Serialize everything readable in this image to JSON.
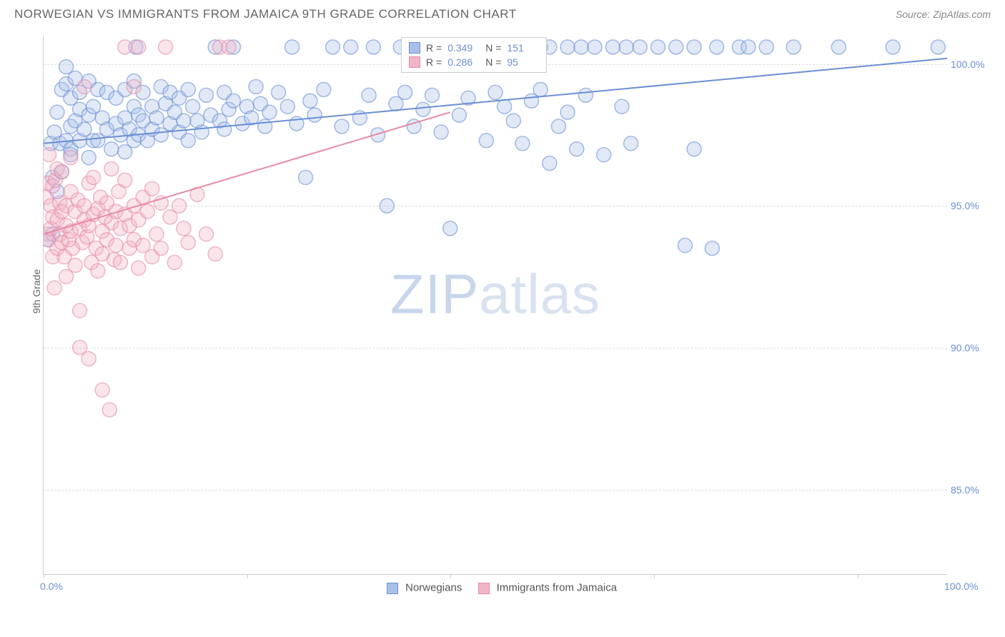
{
  "title": "NORWEGIAN VS IMMIGRANTS FROM JAMAICA 9TH GRADE CORRELATION CHART",
  "source": "Source: ZipAtlas.com",
  "ylabel": "9th Grade",
  "watermark_a": "ZIP",
  "watermark_b": "atlas",
  "chart": {
    "type": "scatter",
    "xlim": [
      0,
      100
    ],
    "ylim": [
      82,
      101
    ],
    "yticks": [
      85.0,
      90.0,
      95.0,
      100.0
    ],
    "ytick_labels": [
      "85.0%",
      "90.0%",
      "95.0%",
      "100.0%"
    ],
    "xticks": [
      0,
      100
    ],
    "xtick_labels": [
      "0.0%",
      "100.0%"
    ],
    "xtick_marks": [
      0,
      22.5,
      45,
      67.5,
      90
    ],
    "grid_color": "#dddddd",
    "background": "#ffffff",
    "marker_radius": 10,
    "marker_opacity": 0.35,
    "line_width": 2,
    "series": [
      {
        "name": "Norwegians",
        "color": "#6b8fd4",
        "fill": "#a8c0e8",
        "R": "0.349",
        "N": "151",
        "trend": {
          "x1": 0,
          "y1": 97.2,
          "x2": 100,
          "y2": 100.2
        },
        "points": [
          [
            0.5,
            93.8
          ],
          [
            0.8,
            97.2
          ],
          [
            1,
            94.0
          ],
          [
            1,
            96.0
          ],
          [
            1.2,
            97.6
          ],
          [
            1.5,
            95.5
          ],
          [
            1.5,
            98.3
          ],
          [
            1.8,
            97.2
          ],
          [
            2,
            96.2
          ],
          [
            2,
            99.1
          ],
          [
            2.5,
            99.3
          ],
          [
            2.5,
            97.3
          ],
          [
            2.5,
            99.9
          ],
          [
            3,
            97.0
          ],
          [
            3,
            98.8
          ],
          [
            3,
            96.8
          ],
          [
            3,
            97.8
          ],
          [
            3.5,
            99.5
          ],
          [
            3.5,
            98.0
          ],
          [
            4,
            98.4
          ],
          [
            4,
            97.3
          ],
          [
            4,
            99.0
          ],
          [
            4.5,
            97.7
          ],
          [
            5,
            99.4
          ],
          [
            5,
            98.2
          ],
          [
            5,
            96.7
          ],
          [
            5.5,
            97.3
          ],
          [
            5.5,
            98.5
          ],
          [
            6,
            97.3
          ],
          [
            6,
            99.1
          ],
          [
            6.5,
            98.1
          ],
          [
            7,
            99.0
          ],
          [
            7,
            97.7
          ],
          [
            7.5,
            97.0
          ],
          [
            8,
            97.9
          ],
          [
            8,
            98.8
          ],
          [
            8.5,
            97.5
          ],
          [
            9,
            98.1
          ],
          [
            9,
            99.1
          ],
          [
            9,
            96.9
          ],
          [
            9.5,
            97.7
          ],
          [
            10,
            98.5
          ],
          [
            10,
            97.3
          ],
          [
            10,
            99.4
          ],
          [
            10.5,
            98.2
          ],
          [
            10.5,
            97.5
          ],
          [
            10.2,
            100.6
          ],
          [
            11,
            98.0
          ],
          [
            11,
            99.0
          ],
          [
            11.5,
            97.3
          ],
          [
            12,
            98.5
          ],
          [
            12,
            97.7
          ],
          [
            12.5,
            98.1
          ],
          [
            13,
            99.2
          ],
          [
            13,
            97.5
          ],
          [
            13.5,
            98.6
          ],
          [
            14,
            97.9
          ],
          [
            14,
            99.0
          ],
          [
            14.5,
            98.3
          ],
          [
            15,
            98.8
          ],
          [
            15,
            97.6
          ],
          [
            15.5,
            98.0
          ],
          [
            16,
            97.3
          ],
          [
            16,
            99.1
          ],
          [
            16.5,
            98.5
          ],
          [
            17,
            98.0
          ],
          [
            17.5,
            97.6
          ],
          [
            18,
            98.9
          ],
          [
            18.5,
            98.2
          ],
          [
            19,
            100.6
          ],
          [
            19.5,
            98.0
          ],
          [
            20,
            99.0
          ],
          [
            20,
            97.7
          ],
          [
            20.5,
            98.4
          ],
          [
            21,
            98.7
          ],
          [
            21,
            100.6
          ],
          [
            22,
            97.9
          ],
          [
            22.5,
            98.5
          ],
          [
            23,
            98.1
          ],
          [
            23.5,
            99.2
          ],
          [
            24,
            98.6
          ],
          [
            24.5,
            97.8
          ],
          [
            25,
            98.3
          ],
          [
            26,
            99.0
          ],
          [
            27,
            98.5
          ],
          [
            27.5,
            100.6
          ],
          [
            28,
            97.9
          ],
          [
            29,
            96.0
          ],
          [
            29.5,
            98.7
          ],
          [
            30,
            98.2
          ],
          [
            31,
            99.1
          ],
          [
            32,
            100.6
          ],
          [
            33,
            97.8
          ],
          [
            34,
            100.6
          ],
          [
            35,
            98.1
          ],
          [
            36,
            98.9
          ],
          [
            36.5,
            100.6
          ],
          [
            37,
            97.5
          ],
          [
            38,
            95.0
          ],
          [
            39,
            98.6
          ],
          [
            39.5,
            100.6
          ],
          [
            40,
            99.0
          ],
          [
            41,
            97.8
          ],
          [
            42,
            98.4
          ],
          [
            42,
            100.6
          ],
          [
            43,
            98.9
          ],
          [
            44,
            97.6
          ],
          [
            45,
            100.6
          ],
          [
            45,
            94.2
          ],
          [
            46,
            98.2
          ],
          [
            47,
            98.8
          ],
          [
            48.5,
            100.6
          ],
          [
            49,
            97.3
          ],
          [
            50,
            99.0
          ],
          [
            50.5,
            100.6
          ],
          [
            51,
            98.5
          ],
          [
            52,
            98.0
          ],
          [
            52.5,
            100.6
          ],
          [
            53,
            97.2
          ],
          [
            54,
            98.7
          ],
          [
            55,
            99.1
          ],
          [
            55,
            100.6
          ],
          [
            56,
            96.5
          ],
          [
            56,
            100.6
          ],
          [
            57,
            97.8
          ],
          [
            58,
            100.6
          ],
          [
            58,
            98.3
          ],
          [
            59,
            97.0
          ],
          [
            59.5,
            100.6
          ],
          [
            60,
            98.9
          ],
          [
            61,
            100.6
          ],
          [
            62,
            96.8
          ],
          [
            63,
            100.6
          ],
          [
            64,
            98.5
          ],
          [
            64.5,
            100.6
          ],
          [
            65,
            97.2
          ],
          [
            66,
            100.6
          ],
          [
            68,
            100.6
          ],
          [
            70,
            100.6
          ],
          [
            71,
            93.6
          ],
          [
            72,
            100.6
          ],
          [
            72,
            97.0
          ],
          [
            74,
            93.5
          ],
          [
            74.5,
            100.6
          ],
          [
            77,
            100.6
          ],
          [
            78,
            100.6
          ],
          [
            80,
            100.6
          ],
          [
            83,
            100.6
          ],
          [
            88,
            100.6
          ],
          [
            94,
            100.6
          ],
          [
            99,
            100.6
          ]
        ]
      },
      {
        "name": "Immigrants from Jamaica",
        "color": "#e68aa5",
        "fill": "#f2b5c5",
        "R": "0.286",
        "N": "95",
        "trend": {
          "x1": 0,
          "y1": 94.0,
          "x2": 45,
          "y2": 98.3
        },
        "points": [
          [
            0.3,
            95.3
          ],
          [
            0.5,
            94.0
          ],
          [
            0.5,
            95.8
          ],
          [
            0.5,
            93.8
          ],
          [
            0.6,
            96.8
          ],
          [
            0.8,
            94.2
          ],
          [
            0.8,
            95.0
          ],
          [
            1,
            93.2
          ],
          [
            1,
            95.7
          ],
          [
            1,
            94.6
          ],
          [
            1.2,
            92.1
          ],
          [
            1.3,
            95.9
          ],
          [
            1.5,
            94.5
          ],
          [
            1.5,
            93.5
          ],
          [
            1.5,
            96.3
          ],
          [
            1.8,
            94.0
          ],
          [
            1.8,
            95.1
          ],
          [
            2,
            93.7
          ],
          [
            2,
            96.2
          ],
          [
            2,
            94.8
          ],
          [
            2.3,
            93.2
          ],
          [
            2.5,
            95.0
          ],
          [
            2.5,
            94.3
          ],
          [
            2.5,
            92.5
          ],
          [
            2.8,
            93.8
          ],
          [
            3,
            95.5
          ],
          [
            3,
            94.1
          ],
          [
            3,
            96.7
          ],
          [
            3.2,
            93.5
          ],
          [
            3.5,
            94.8
          ],
          [
            3.5,
            92.9
          ],
          [
            3.8,
            95.2
          ],
          [
            4,
            94.2
          ],
          [
            4,
            91.3
          ],
          [
            4,
            90.0
          ],
          [
            4.3,
            93.7
          ],
          [
            4.5,
            95.0
          ],
          [
            4.5,
            94.5
          ],
          [
            4.5,
            99.2
          ],
          [
            4.8,
            93.9
          ],
          [
            5,
            95.8
          ],
          [
            5,
            94.3
          ],
          [
            5,
            89.6
          ],
          [
            5.3,
            93.0
          ],
          [
            5.5,
            94.7
          ],
          [
            5.5,
            96.0
          ],
          [
            5.8,
            93.5
          ],
          [
            6,
            94.9
          ],
          [
            6,
            92.7
          ],
          [
            6.3,
            95.3
          ],
          [
            6.5,
            94.1
          ],
          [
            6.5,
            93.3
          ],
          [
            6.5,
            88.5
          ],
          [
            6.8,
            94.6
          ],
          [
            7,
            95.1
          ],
          [
            7,
            93.8
          ],
          [
            7.3,
            87.8
          ],
          [
            7.5,
            94.4
          ],
          [
            7.5,
            96.3
          ],
          [
            7.8,
            93.1
          ],
          [
            8,
            94.8
          ],
          [
            8,
            93.6
          ],
          [
            8.3,
            95.5
          ],
          [
            8.5,
            94.2
          ],
          [
            8.5,
            93.0
          ],
          [
            9,
            94.7
          ],
          [
            9,
            95.9
          ],
          [
            9,
            100.6
          ],
          [
            9.5,
            93.5
          ],
          [
            9.5,
            94.3
          ],
          [
            10,
            95.0
          ],
          [
            10,
            93.8
          ],
          [
            10,
            99.2
          ],
          [
            10.5,
            94.5
          ],
          [
            10.5,
            92.8
          ],
          [
            10.5,
            100.6
          ],
          [
            11,
            95.3
          ],
          [
            11,
            93.6
          ],
          [
            11.5,
            94.8
          ],
          [
            12,
            93.2
          ],
          [
            12,
            95.6
          ],
          [
            12.5,
            94.0
          ],
          [
            13,
            95.1
          ],
          [
            13,
            93.5
          ],
          [
            13.5,
            100.6
          ],
          [
            14,
            94.6
          ],
          [
            14.5,
            93.0
          ],
          [
            15,
            95.0
          ],
          [
            15.5,
            94.2
          ],
          [
            16,
            93.7
          ],
          [
            17,
            95.4
          ],
          [
            18,
            94.0
          ],
          [
            19,
            93.3
          ],
          [
            19.5,
            100.6
          ],
          [
            20.5,
            100.6
          ]
        ]
      }
    ]
  },
  "legend_bottom": {
    "series1_label": "Norwegians",
    "series2_label": "Immigrants from Jamaica"
  }
}
